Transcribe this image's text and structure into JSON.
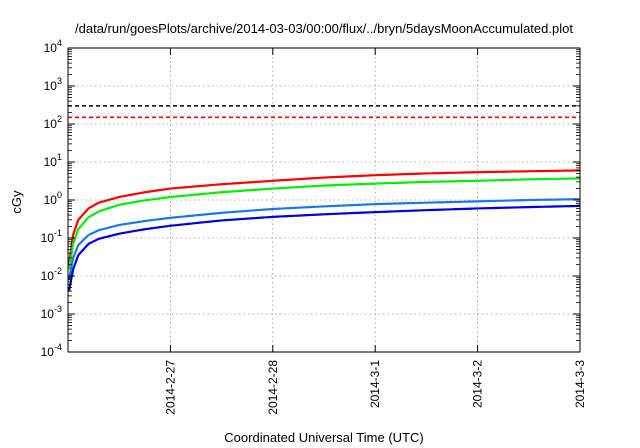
{
  "chart_data": {
    "type": "line",
    "title": "/data/run/goesPlots/archive/2014-03-03/00:00/flux/../bryn/5daysMoonAccumulated.plot",
    "xlabel": "Coordinated Universal Time (UTC)",
    "ylabel": "cGy",
    "x_tick_labels": [
      "2014-2-27",
      "2014-2-28",
      "2014-3-1",
      "2014-3-2",
      "2014-3-3"
    ],
    "x_ticks_days": [
      1,
      2,
      3,
      4,
      5
    ],
    "xlim_days": [
      0,
      5
    ],
    "y_scale": "log",
    "ylim": [
      0.0001,
      10000
    ],
    "y_tick_labels": [
      {
        "base": "10",
        "exp": "-4",
        "value": 0.0001
      },
      {
        "base": "10",
        "exp": "-3",
        "value": 0.001
      },
      {
        "base": "10",
        "exp": "-2",
        "value": 0.01
      },
      {
        "base": "10",
        "exp": "-1",
        "value": 0.1
      },
      {
        "base": "10",
        "exp": "0",
        "value": 1
      },
      {
        "base": "10",
        "exp": "1",
        "value": 10
      },
      {
        "base": "10",
        "exp": "2",
        "value": 100
      },
      {
        "base": "10",
        "exp": "3",
        "value": 1000
      },
      {
        "base": "10",
        "exp": "4",
        "value": 10000
      }
    ],
    "grid": true,
    "reference_lines": [
      {
        "y": 300,
        "color": "#000000",
        "style": "dashed"
      },
      {
        "y": 150,
        "color": "#ff0000",
        "style": "dashed"
      }
    ],
    "x": [
      0.01,
      0.05,
      0.1,
      0.2,
      0.3,
      0.5,
      0.75,
      1,
      1.5,
      2,
      2.5,
      3,
      3.5,
      4,
      4.5,
      5
    ],
    "series": [
      {
        "color": "#ff0000",
        "values": [
          0.02,
          0.12,
          0.3,
          0.6,
          0.85,
          1.2,
          1.6,
          2.0,
          2.6,
          3.2,
          3.9,
          4.5,
          5.0,
          5.4,
          5.7,
          6.0
        ]
      },
      {
        "color": "#00ee00",
        "values": [
          0.015,
          0.07,
          0.17,
          0.35,
          0.5,
          0.75,
          0.98,
          1.2,
          1.6,
          2.0,
          2.4,
          2.7,
          3.0,
          3.2,
          3.5,
          3.7
        ]
      },
      {
        "color": "#1a78e6",
        "values": [
          0.008,
          0.03,
          0.065,
          0.12,
          0.16,
          0.22,
          0.28,
          0.34,
          0.46,
          0.58,
          0.68,
          0.78,
          0.85,
          0.92,
          1.0,
          1.05
        ]
      },
      {
        "color": "#0000dd",
        "values": [
          0.004,
          0.015,
          0.035,
          0.07,
          0.095,
          0.13,
          0.17,
          0.21,
          0.29,
          0.36,
          0.42,
          0.48,
          0.54,
          0.6,
          0.65,
          0.7
        ]
      }
    ]
  }
}
